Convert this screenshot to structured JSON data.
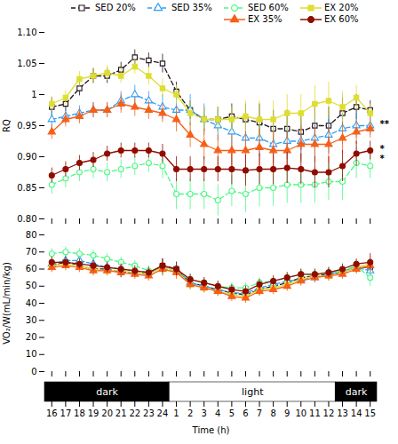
{
  "chart_data": [
    {
      "type": "line",
      "ylabel": "RQ",
      "categories": [
        16,
        17,
        18,
        19,
        20,
        21,
        22,
        23,
        24,
        1,
        2,
        3,
        4,
        5,
        6,
        7,
        8,
        9,
        10,
        11,
        12,
        13,
        14,
        15
      ],
      "ylim": [
        0.8,
        1.1
      ],
      "yticks": [
        {
          "value": 0.8,
          "label": "0.80"
        },
        0.85,
        {
          "value": 0.9,
          "label": "0.90"
        },
        0.95,
        1,
        1.05,
        {
          "value": 1.1,
          "label": "1.10"
        }
      ],
      "tick_labels": "y",
      "grid": false,
      "legend": "top",
      "series": [
        {
          "name": "SED 20%",
          "marker": "square_open",
          "line_style": "dashed",
          "values": [
            0.98,
            0.985,
            1.01,
            1.03,
            1.03,
            1.04,
            1.06,
            1.055,
            1.05,
            1.005,
            0.975,
            0.96,
            0.96,
            0.965,
            0.96,
            0.955,
            0.945,
            0.945,
            0.94,
            0.95,
            0.95,
            0.97,
            0.98,
            0.975
          ],
          "errors": [
            0.015,
            0.012,
            0.012,
            0.012,
            0.012,
            0.012,
            0.012,
            0.012,
            0.015,
            0.015,
            0.015,
            0.02,
            0.02,
            0.02,
            0.025,
            0.03,
            0.03,
            0.03,
            0.03,
            0.03,
            0.03,
            0.025,
            0.02,
            0.015
          ]
        },
        {
          "name": "SED 35%",
          "marker": "triangle_open",
          "line_style": "dashed",
          "values": [
            0.96,
            0.965,
            0.97,
            0.975,
            0.975,
            0.99,
            1.0,
            0.99,
            0.98,
            0.975,
            0.975,
            0.96,
            0.95,
            0.94,
            0.93,
            0.93,
            0.92,
            0.925,
            0.925,
            0.93,
            0.935,
            0.945,
            0.95,
            0.95
          ],
          "errors": [
            0.015,
            0.012,
            0.012,
            0.012,
            0.012,
            0.015,
            0.015,
            0.015,
            0.02,
            0.02,
            0.025,
            0.025,
            0.025,
            0.025,
            0.025,
            0.03,
            0.03,
            0.03,
            0.03,
            0.03,
            0.03,
            0.025,
            0.02,
            0.015
          ]
        },
        {
          "name": "SED 60%",
          "marker": "circle_open",
          "line_style": "dashed",
          "values": [
            0.855,
            0.865,
            0.875,
            0.88,
            0.875,
            0.88,
            0.885,
            0.89,
            0.885,
            0.84,
            0.84,
            0.84,
            0.83,
            0.845,
            0.84,
            0.85,
            0.85,
            0.855,
            0.855,
            0.855,
            0.86,
            0.86,
            0.89,
            0.885
          ],
          "errors": [
            0.015,
            0.015,
            0.015,
            0.015,
            0.015,
            0.015,
            0.015,
            0.015,
            0.02,
            0.025,
            0.025,
            0.025,
            0.025,
            0.025,
            0.03,
            0.03,
            0.03,
            0.03,
            0.03,
            0.03,
            0.03,
            0.03,
            0.025,
            0.02
          ]
        },
        {
          "name": "EX 20%",
          "marker": "square",
          "line_style": "solid",
          "values": [
            0.985,
            0.995,
            1.025,
            1.03,
            1.035,
            1.03,
            1.045,
            1.03,
            1.01,
            1.0,
            0.97,
            0.96,
            0.96,
            0.96,
            0.965,
            0.96,
            0.96,
            0.97,
            0.97,
            0.985,
            0.99,
            0.98,
            0.995,
            0.97
          ],
          "errors": [
            0.012,
            0.012,
            0.012,
            0.012,
            0.012,
            0.012,
            0.012,
            0.015,
            0.015,
            0.015,
            0.02,
            0.02,
            0.02,
            0.02,
            0.025,
            0.03,
            0.03,
            0.03,
            0.03,
            0.03,
            0.03,
            0.025,
            0.02,
            0.015
          ]
        },
        {
          "name": "EX 35%",
          "marker": "triangle",
          "line_style": "solid",
          "values": [
            0.94,
            0.96,
            0.965,
            0.975,
            0.975,
            0.985,
            0.98,
            0.975,
            0.97,
            0.96,
            0.935,
            0.92,
            0.91,
            0.91,
            0.91,
            0.915,
            0.91,
            0.91,
            0.92,
            0.92,
            0.92,
            0.93,
            0.94,
            0.945
          ],
          "errors": [
            0.012,
            0.012,
            0.012,
            0.012,
            0.012,
            0.015,
            0.015,
            0.015,
            0.015,
            0.02,
            0.02,
            0.025,
            0.025,
            0.025,
            0.03,
            0.03,
            0.03,
            0.03,
            0.03,
            0.03,
            0.03,
            0.025,
            0.02,
            0.015
          ]
        },
        {
          "name": "EX 60%",
          "marker": "circle",
          "line_style": "solid",
          "values": [
            0.87,
            0.88,
            0.89,
            0.895,
            0.905,
            0.91,
            0.91,
            0.91,
            0.905,
            0.88,
            0.88,
            0.88,
            0.88,
            0.88,
            0.878,
            0.88,
            0.88,
            0.882,
            0.88,
            0.875,
            0.875,
            0.885,
            0.905,
            0.91
          ],
          "errors": [
            0.012,
            0.012,
            0.012,
            0.012,
            0.012,
            0.012,
            0.012,
            0.012,
            0.015,
            0.02,
            0.02,
            0.02,
            0.02,
            0.025,
            0.025,
            0.025,
            0.025,
            0.025,
            0.025,
            0.025,
            0.025,
            0.025,
            0.02,
            0.015
          ]
        }
      ],
      "annotations": [
        {
          "text": "**",
          "y": 0.952
        },
        {
          "text": "*",
          "y": 0.912
        },
        {
          "text": "*",
          "y": 0.897
        }
      ]
    },
    {
      "type": "line",
      "ylabel": "VO₂/W(mL/min/kg)",
      "categories": [
        16,
        17,
        18,
        19,
        20,
        21,
        22,
        23,
        24,
        1,
        2,
        3,
        4,
        5,
        6,
        7,
        8,
        9,
        10,
        11,
        12,
        13,
        14,
        15
      ],
      "ylim": [
        0,
        80
      ],
      "yticks": [
        0,
        10,
        20,
        30,
        40,
        50,
        60,
        70,
        80
      ],
      "tick_labels": "y",
      "grid": false,
      "series": [
        {
          "name": "SED 20%",
          "marker": "square_open",
          "line_style": "dashed",
          "values": [
            62,
            64,
            62,
            60,
            60,
            58,
            58,
            57,
            62,
            60,
            52,
            50,
            48,
            46,
            45,
            48,
            50,
            52,
            55,
            56,
            57,
            58,
            61,
            61
          ],
          "errors": [
            3,
            3,
            3,
            3,
            3,
            3,
            3,
            3,
            4,
            4,
            3,
            3,
            3,
            3,
            3,
            3,
            3,
            3,
            3,
            3,
            3,
            3,
            3,
            4
          ]
        },
        {
          "name": "SED 35%",
          "marker": "triangle_open",
          "line_style": "dashed",
          "values": [
            63,
            65,
            65,
            63,
            61,
            60,
            59,
            58,
            61,
            60,
            52,
            50,
            48,
            46,
            46,
            49,
            51,
            53,
            54,
            55,
            57,
            59,
            61,
            59
          ],
          "errors": [
            3,
            3,
            3,
            3,
            3,
            3,
            3,
            3,
            4,
            4,
            3,
            3,
            3,
            3,
            3,
            3,
            3,
            3,
            3,
            3,
            3,
            3,
            3,
            4
          ]
        },
        {
          "name": "SED 60%",
          "marker": "circle_open",
          "line_style": "dashed",
          "values": [
            69,
            70,
            69,
            68,
            66,
            64,
            62,
            59,
            60,
            59,
            54,
            52,
            50,
            49,
            49,
            52,
            53,
            55,
            57,
            57,
            58,
            59,
            62,
            55
          ],
          "errors": [
            3,
            3,
            3,
            3,
            3,
            3,
            3,
            3,
            4,
            4,
            3,
            3,
            3,
            3,
            3,
            3,
            3,
            3,
            3,
            3,
            3,
            3,
            3,
            5
          ]
        },
        {
          "name": "EX 20%",
          "marker": "square",
          "line_style": "solid",
          "values": [
            62,
            63,
            62,
            60,
            59,
            59,
            58,
            57,
            61,
            59,
            51,
            49,
            47,
            45,
            44,
            48,
            49,
            51,
            54,
            56,
            56,
            58,
            61,
            63
          ],
          "errors": [
            3,
            3,
            3,
            3,
            3,
            3,
            3,
            3,
            4,
            4,
            3,
            3,
            3,
            3,
            3,
            3,
            3,
            3,
            3,
            3,
            3,
            3,
            3,
            4
          ]
        },
        {
          "name": "EX 35%",
          "marker": "triangle",
          "line_style": "solid",
          "values": [
            61,
            62,
            61,
            59,
            59,
            58,
            57,
            56,
            60,
            58,
            51,
            49,
            47,
            44,
            43,
            47,
            48,
            50,
            53,
            55,
            56,
            57,
            60,
            62
          ],
          "errors": [
            3,
            3,
            3,
            3,
            3,
            3,
            3,
            3,
            4,
            4,
            3,
            3,
            3,
            3,
            3,
            3,
            3,
            3,
            3,
            3,
            3,
            3,
            3,
            4
          ]
        },
        {
          "name": "EX 60%",
          "marker": "circle",
          "line_style": "solid",
          "values": [
            64,
            64,
            63,
            62,
            61,
            60,
            59,
            58,
            62,
            60,
            54,
            52,
            50,
            48,
            47,
            51,
            53,
            55,
            57,
            57,
            58,
            60,
            63,
            64
          ],
          "errors": [
            3,
            3,
            3,
            3,
            3,
            3,
            3,
            3,
            4,
            4,
            3,
            3,
            3,
            3,
            3,
            3,
            3,
            3,
            3,
            3,
            3,
            3,
            3,
            5
          ]
        }
      ]
    },
    {
      "type": "band",
      "xlabel": "Time (h)",
      "categories": [
        16,
        17,
        18,
        19,
        20,
        21,
        22,
        23,
        24,
        1,
        2,
        3,
        4,
        5,
        6,
        7,
        8,
        9,
        10,
        11,
        12,
        13,
        14,
        15
      ],
      "tick_labels": "x",
      "periods": [
        {
          "label": "dark",
          "from": 16,
          "to": 24,
          "color": "black"
        },
        {
          "label": "light",
          "from": 1,
          "to": 12,
          "color": "white"
        },
        {
          "label": "dark",
          "from": 13,
          "to": 15,
          "color": "black"
        }
      ]
    }
  ]
}
